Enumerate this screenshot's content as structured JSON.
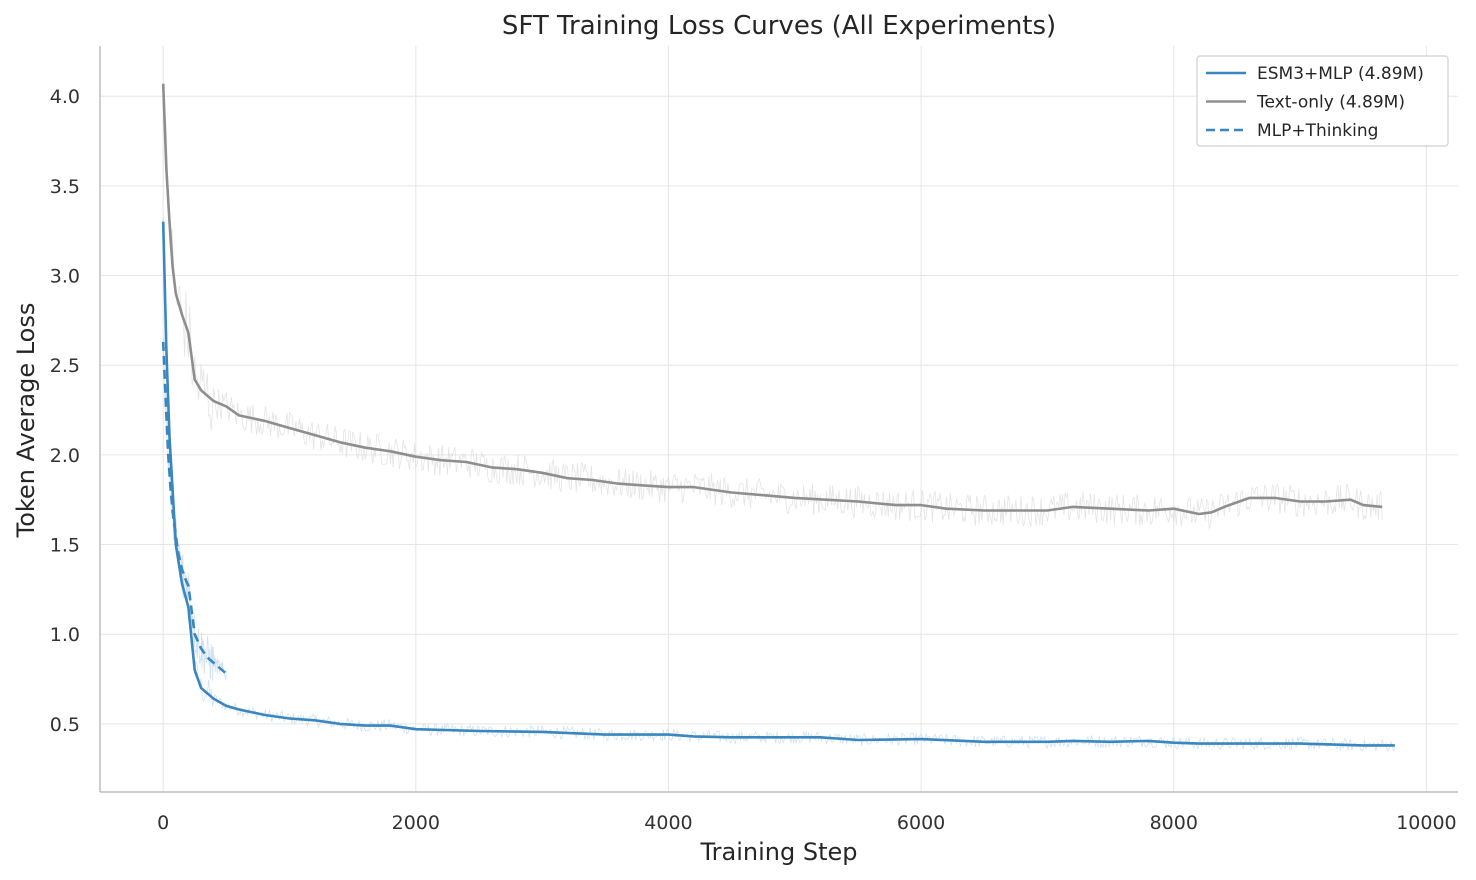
{
  "chart_data": {
    "type": "line",
    "title": "SFT Training Loss Curves (All Experiments)",
    "xlabel": "Training Step",
    "ylabel": "Token Average Loss",
    "xlim": [
      -500,
      10250
    ],
    "ylim": [
      0.12,
      4.28
    ],
    "grid": true,
    "legend_position": "top-right",
    "x_ticks": [
      {
        "value": 0,
        "label": "0"
      },
      {
        "value": 2000,
        "label": "2000"
      },
      {
        "value": 4000,
        "label": "4000"
      },
      {
        "value": 6000,
        "label": "6000"
      },
      {
        "value": 8000,
        "label": "8000"
      },
      {
        "value": 10000,
        "label": "10000"
      }
    ],
    "y_ticks": [
      {
        "value": 0.5,
        "label": "0.5"
      },
      {
        "value": 1.0,
        "label": "1.0"
      },
      {
        "value": 1.5,
        "label": "1.5"
      },
      {
        "value": 2.0,
        "label": "2.0"
      },
      {
        "value": 2.5,
        "label": "2.5"
      },
      {
        "value": 3.0,
        "label": "3.0"
      },
      {
        "value": 3.5,
        "label": "3.5"
      },
      {
        "value": 4.0,
        "label": "4.0"
      }
    ],
    "series": [
      {
        "name": "ESM3+MLP (4.89M)",
        "color": "#3a86bf",
        "raw_color": "#bcd6ea",
        "style": "solid",
        "x": [
          0,
          25,
          50,
          100,
          150,
          200,
          250,
          300,
          400,
          500,
          600,
          800,
          1000,
          1200,
          1400,
          1600,
          1800,
          2000,
          2500,
          3000,
          3500,
          4000,
          4200,
          4500,
          5000,
          5200,
          5500,
          6000,
          6500,
          7000,
          7200,
          7500,
          7800,
          8000,
          8200,
          8500,
          9000,
          9500,
          9750
        ],
        "y": [
          3.3,
          2.6,
          2.1,
          1.5,
          1.28,
          1.15,
          0.8,
          0.7,
          0.64,
          0.6,
          0.58,
          0.55,
          0.53,
          0.52,
          0.5,
          0.49,
          0.49,
          0.47,
          0.46,
          0.455,
          0.44,
          0.44,
          0.43,
          0.425,
          0.425,
          0.425,
          0.41,
          0.415,
          0.4,
          0.4,
          0.405,
          0.4,
          0.405,
          0.395,
          0.39,
          0.39,
          0.39,
          0.38,
          0.38
        ]
      },
      {
        "name": "Text-only (4.89M)",
        "color": "#8e8e8e",
        "raw_color": "#d9d9d9",
        "style": "solid",
        "x": [
          0,
          25,
          50,
          75,
          100,
          150,
          200,
          250,
          300,
          400,
          500,
          600,
          800,
          1000,
          1200,
          1400,
          1600,
          1800,
          2000,
          2200,
          2400,
          2600,
          2800,
          3000,
          3200,
          3400,
          3600,
          3800,
          4000,
          4200,
          4500,
          5000,
          5500,
          5800,
          6000,
          6200,
          6500,
          6800,
          7000,
          7200,
          7500,
          7800,
          8000,
          8200,
          8300,
          8400,
          8600,
          8800,
          9000,
          9200,
          9400,
          9500,
          9650
        ],
        "y": [
          4.07,
          3.6,
          3.3,
          3.05,
          2.9,
          2.78,
          2.68,
          2.42,
          2.36,
          2.3,
          2.27,
          2.22,
          2.19,
          2.15,
          2.11,
          2.07,
          2.04,
          2.02,
          1.99,
          1.97,
          1.96,
          1.93,
          1.92,
          1.9,
          1.87,
          1.86,
          1.84,
          1.83,
          1.82,
          1.82,
          1.79,
          1.76,
          1.74,
          1.72,
          1.72,
          1.7,
          1.69,
          1.69,
          1.69,
          1.71,
          1.7,
          1.69,
          1.7,
          1.67,
          1.68,
          1.71,
          1.76,
          1.76,
          1.74,
          1.74,
          1.75,
          1.72,
          1.71
        ]
      },
      {
        "name": "MLP+Thinking",
        "color": "#3a86bf",
        "raw_color": "#bcd6ea",
        "style": "dashed",
        "x": [
          0,
          20,
          40,
          60,
          80,
          100,
          120,
          150,
          180,
          200,
          250,
          300,
          350,
          400,
          450,
          500
        ],
        "y": [
          2.63,
          2.3,
          2.0,
          1.8,
          1.65,
          1.55,
          1.45,
          1.36,
          1.3,
          1.27,
          1.0,
          0.92,
          0.87,
          0.84,
          0.81,
          0.78
        ]
      }
    ]
  }
}
